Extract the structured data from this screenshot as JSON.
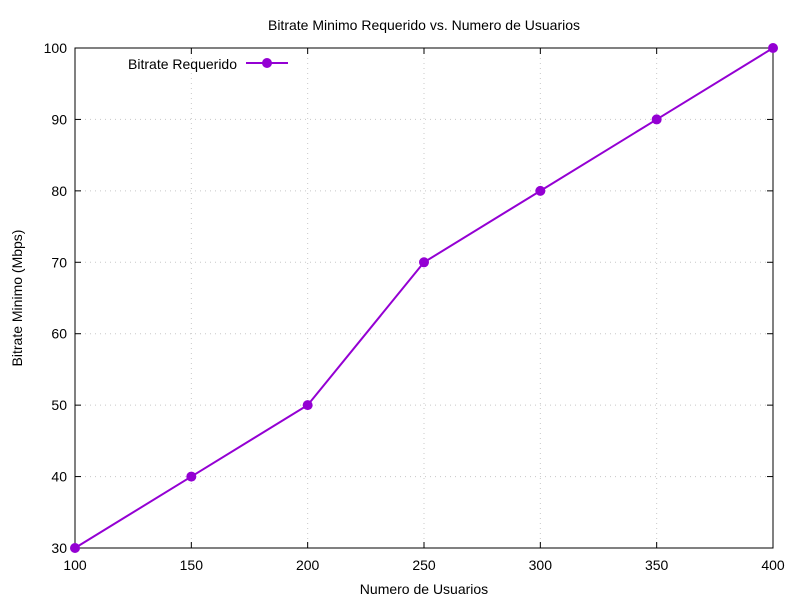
{
  "chart_data": {
    "type": "line",
    "title": "Bitrate Minimo Requerido vs. Numero de Usuarios",
    "xlabel": "Numero de Usuarios",
    "ylabel": "Bitrate Minimo (Mbps)",
    "xlim": [
      100,
      400
    ],
    "ylim": [
      30,
      100
    ],
    "xticks": [
      100,
      150,
      200,
      250,
      300,
      350,
      400
    ],
    "yticks": [
      30,
      40,
      50,
      60,
      70,
      80,
      90,
      100
    ],
    "grid": true,
    "legend_position": "top-left",
    "series": [
      {
        "name": "Bitrate Requerido",
        "color": "#9400d3",
        "marker": "circle",
        "x": [
          100,
          150,
          200,
          250,
          300,
          350,
          400
        ],
        "y": [
          30,
          40,
          50,
          70,
          80,
          90,
          100
        ]
      }
    ]
  }
}
